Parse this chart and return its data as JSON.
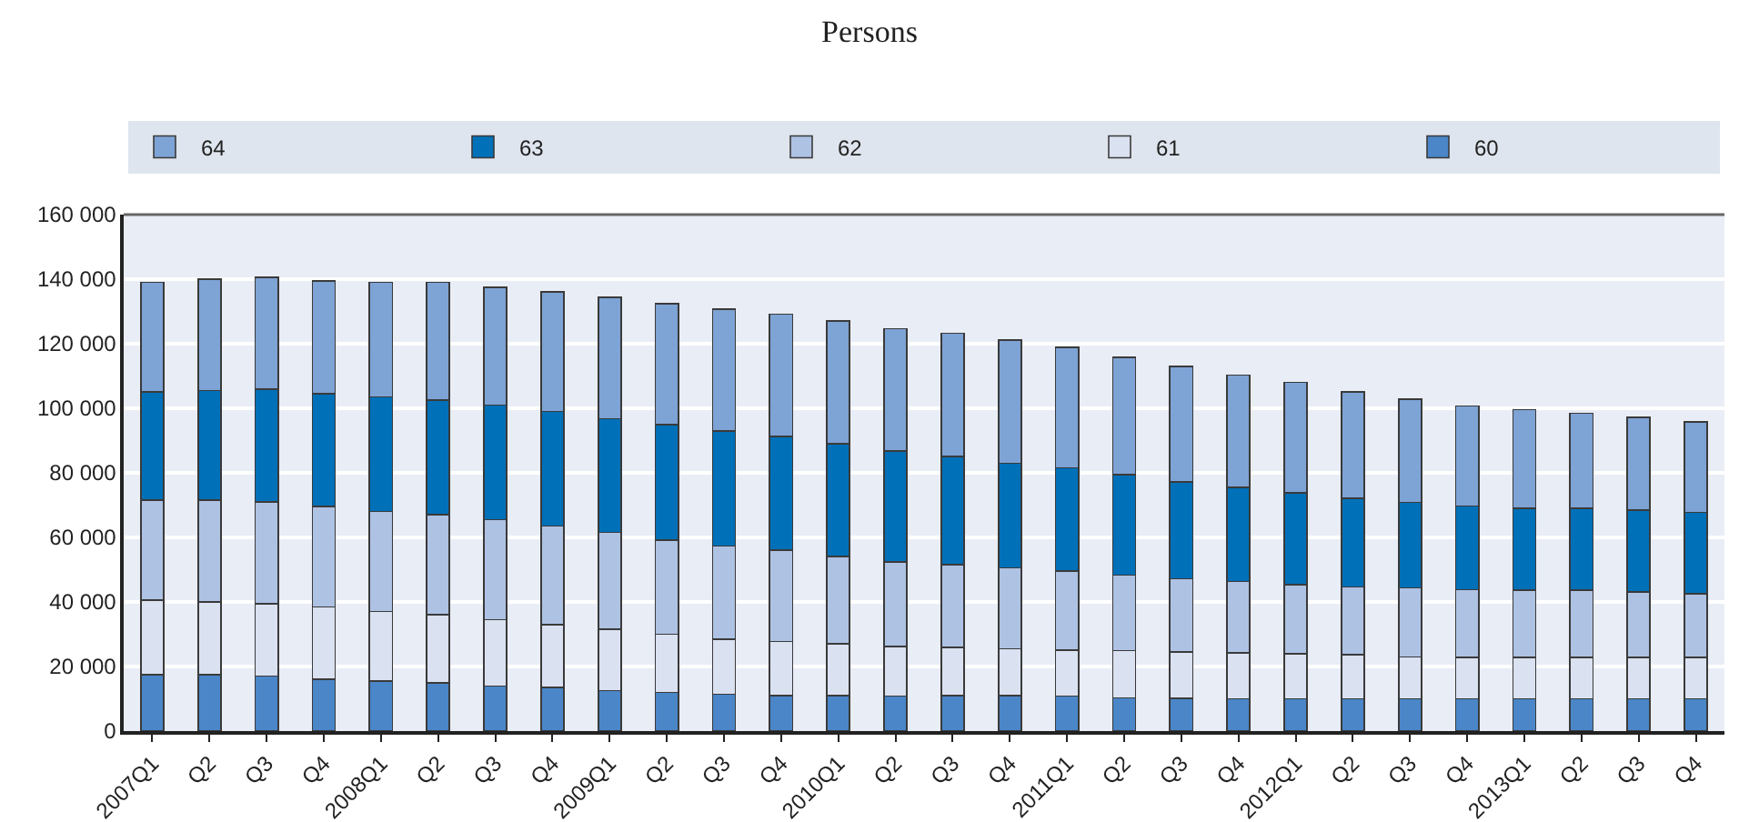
{
  "chart_data": {
    "type": "bar",
    "title": "Persons",
    "stacked": true,
    "legend": "top",
    "grid": "y",
    "categories": [
      "2007Q1",
      "Q2",
      "Q3",
      "Q4",
      "2008Q1",
      "Q2",
      "Q3",
      "Q4",
      "2009Q1",
      "Q2",
      "Q3",
      "Q4",
      "2010Q1",
      "Q2",
      "Q3",
      "Q4",
      "2011Q1",
      "Q2",
      "Q3",
      "Q4",
      "2012Q1",
      "Q2",
      "Q3",
      "Q4",
      "2013Q1",
      "Q2",
      "Q3",
      "Q4"
    ],
    "ylim": [
      0,
      160000
    ],
    "yticks": [
      0,
      {
        "value": 20000,
        "label": "20 000"
      },
      {
        "value": 40000,
        "label": "40 000"
      },
      {
        "value": 60000,
        "label": "60 000"
      },
      {
        "value": 80000,
        "label": "80 000"
      },
      {
        "value": 100000,
        "label": "100 000"
      },
      {
        "value": 120000,
        "label": "120 000"
      },
      {
        "value": 140000,
        "label": "140 000"
      },
      {
        "value": 160000,
        "label": "160 000"
      }
    ],
    "series": [
      {
        "name": "60",
        "color": "#4a86c8",
        "values": [
          17500,
          17500,
          17000,
          16000,
          15500,
          15000,
          14000,
          13500,
          12500,
          12000,
          11400,
          11000,
          11000,
          10900,
          11000,
          11000,
          10900,
          10300,
          10100,
          10000,
          10000,
          10000,
          10000,
          10000,
          10000,
          10000,
          10000,
          10000
        ]
      },
      {
        "name": "61",
        "color": "#dae1f1",
        "values": [
          23000,
          22500,
          22500,
          22500,
          21500,
          21000,
          20500,
          19500,
          19000,
          18000,
          17100,
          16700,
          16000,
          15300,
          15000,
          14500,
          14200,
          14600,
          14400,
          14300,
          14000,
          13600,
          13000,
          12800,
          12800,
          12800,
          12800,
          12800
        ]
      },
      {
        "name": "62",
        "color": "#aec2e3",
        "values": [
          31000,
          31500,
          31500,
          31000,
          31000,
          31000,
          31000,
          30500,
          30100,
          29200,
          28800,
          28300,
          27100,
          26200,
          25500,
          25100,
          24500,
          23400,
          22700,
          22000,
          21300,
          21000,
          21400,
          21000,
          20800,
          20800,
          20300,
          19700
        ]
      },
      {
        "name": "63",
        "color": "#0070b8",
        "values": [
          33500,
          34000,
          35000,
          35000,
          35500,
          35500,
          35500,
          35500,
          35200,
          35800,
          35700,
          35200,
          35000,
          34300,
          33500,
          32400,
          32000,
          31100,
          30000,
          29200,
          28500,
          27500,
          26400,
          25900,
          25500,
          25500,
          25300,
          25300
        ]
      },
      {
        "name": "64",
        "color": "#7ea3d5",
        "values": [
          34000,
          34500,
          34500,
          35000,
          35500,
          36500,
          36500,
          37000,
          37500,
          37400,
          37700,
          38000,
          37900,
          38000,
          38200,
          38200,
          37300,
          36300,
          35700,
          34800,
          34200,
          33000,
          32000,
          31000,
          30500,
          29400,
          28800,
          27900
        ]
      }
    ]
  }
}
